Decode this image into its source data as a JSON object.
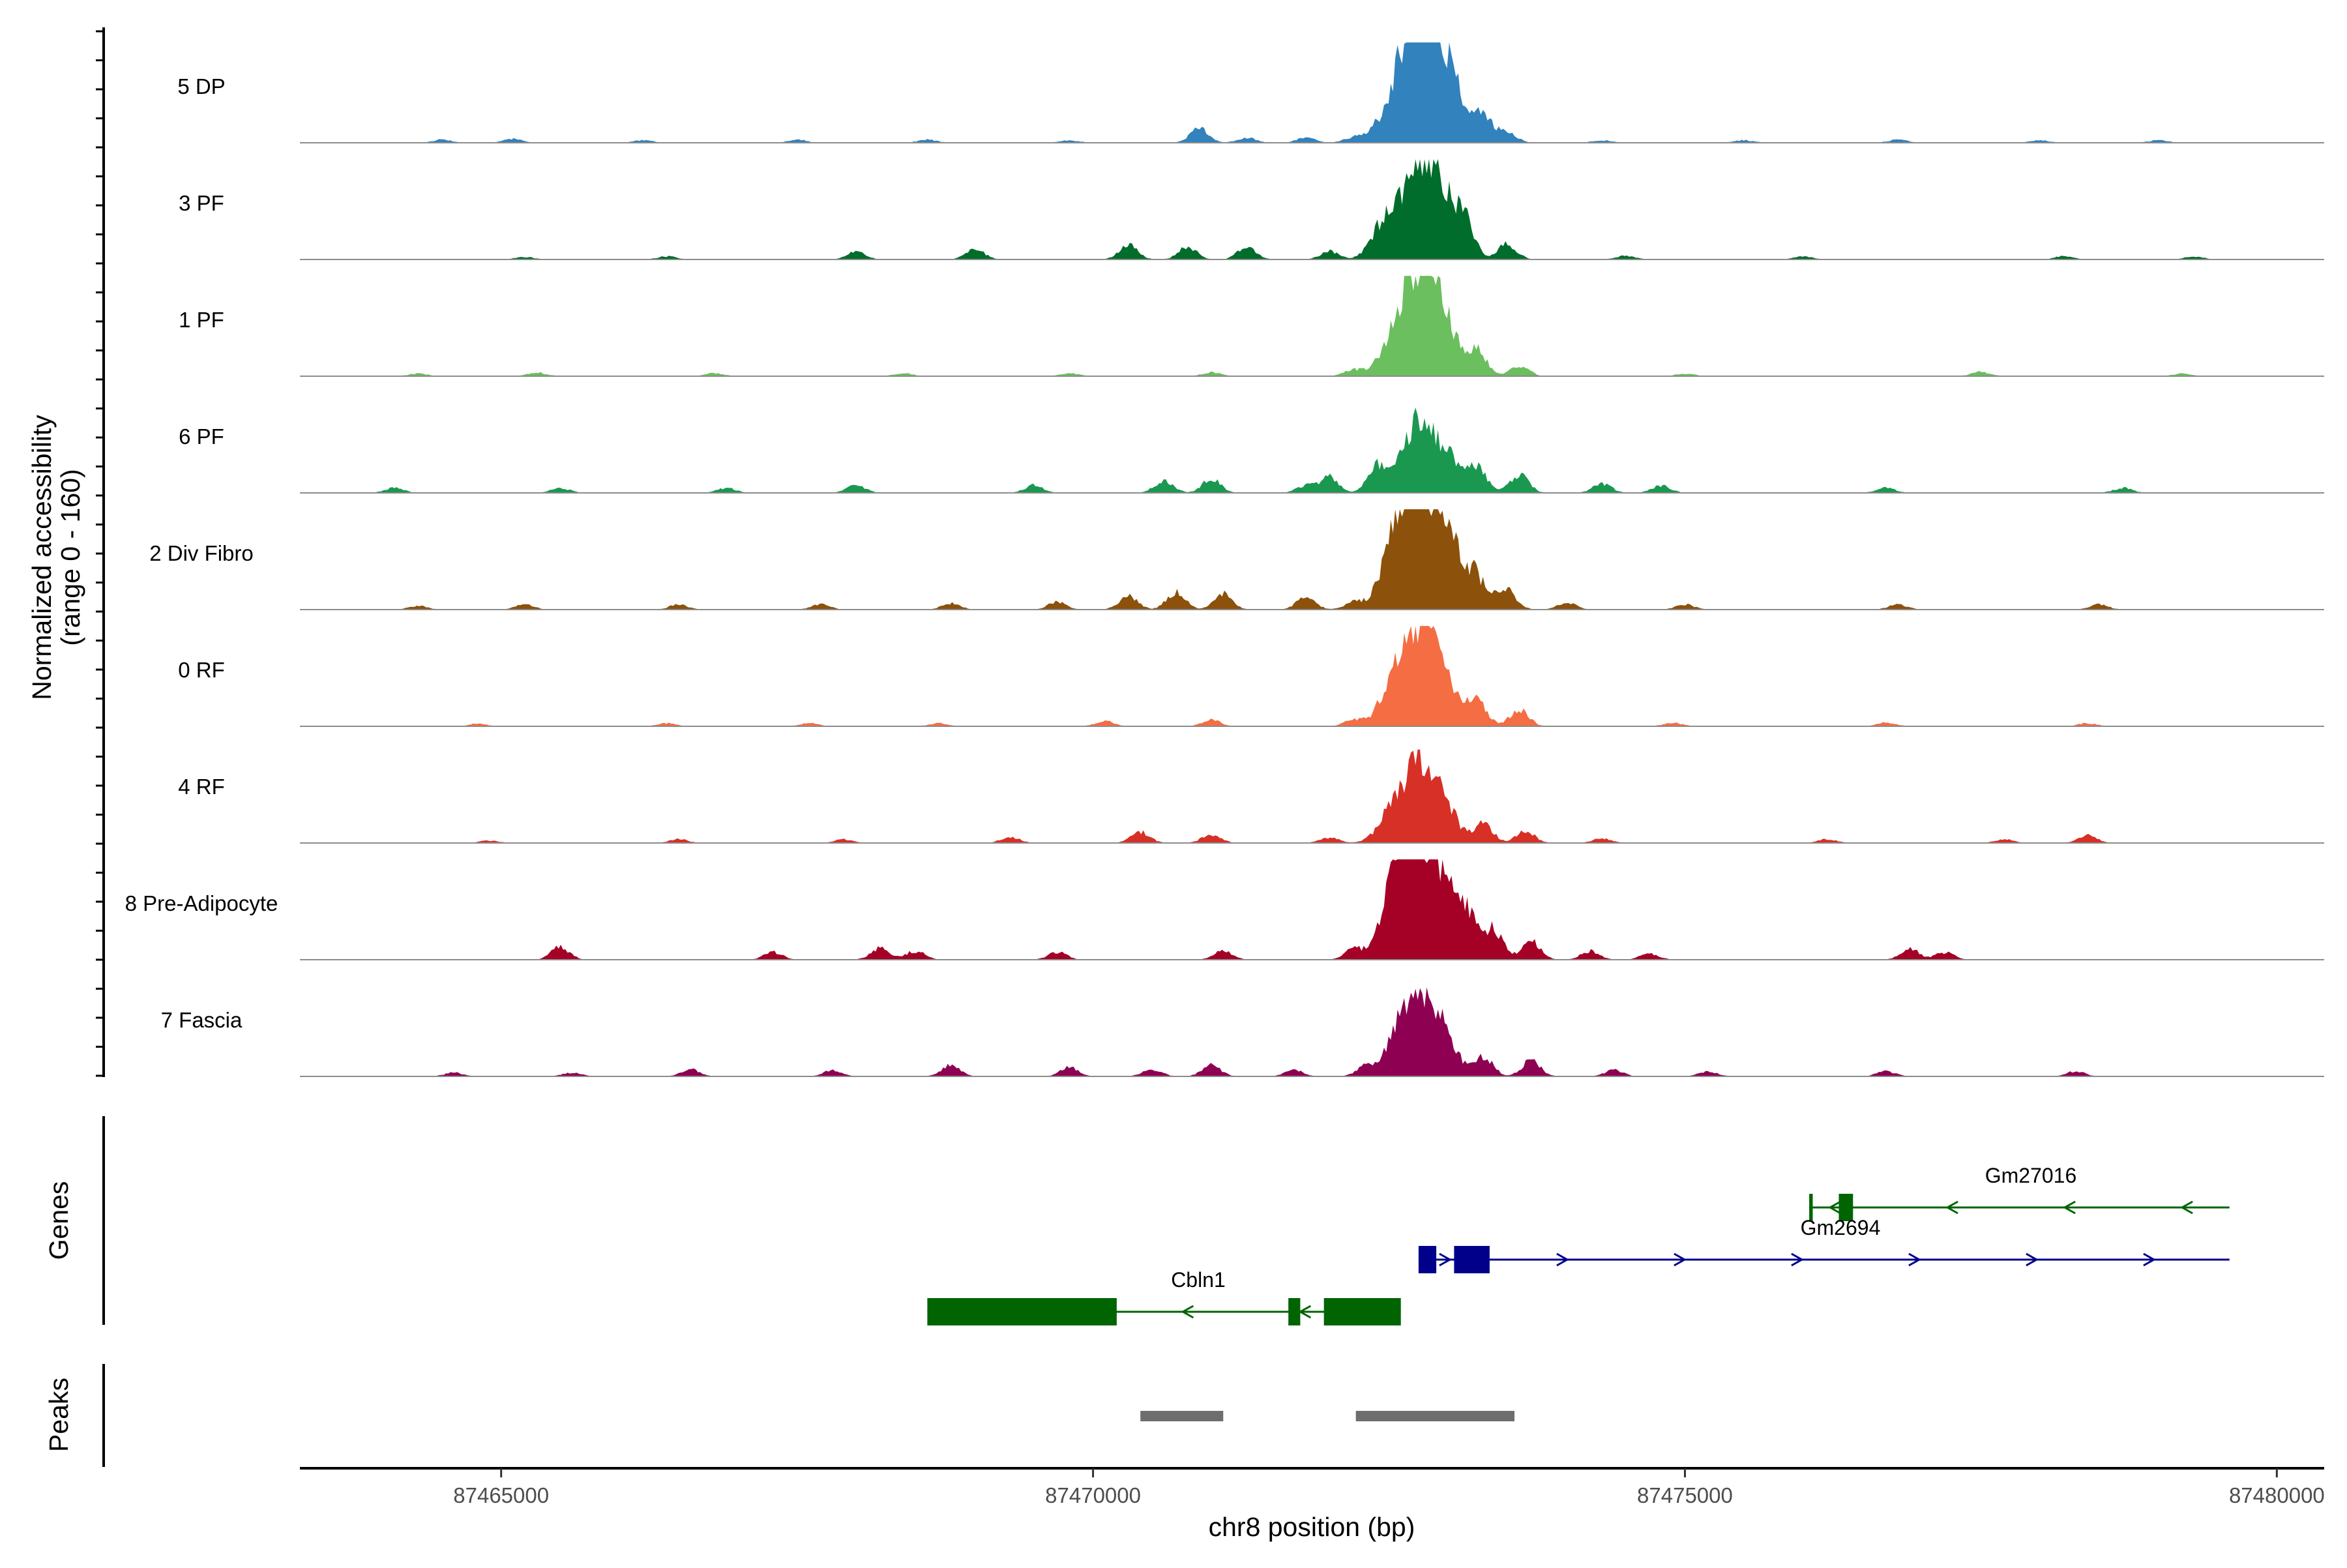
{
  "chart_data": {
    "type": "area",
    "title": "",
    "xlabel": "chr8 position (bp)",
    "ylabel": "Normalized accessibility",
    "ylabel_sub": "(range 0 - 160)",
    "ylim": [
      0,
      160
    ],
    "xlim": [
      87463300,
      87480400
    ],
    "x_ticks": [
      {
        "value": 87465000,
        "label": "87465000"
      },
      {
        "value": 87470000,
        "label": "87470000"
      },
      {
        "value": 87475000,
        "label": "87475000"
      },
      {
        "value": 87480000,
        "label": "87480000"
      }
    ],
    "tracks": [
      {
        "name": "5 DP",
        "color": "#3182BD",
        "main_peak": 150,
        "peaks": [
          [
            87464500,
            5
          ],
          [
            87465100,
            6
          ],
          [
            87466200,
            4
          ],
          [
            87467500,
            5
          ],
          [
            87468600,
            5
          ],
          [
            87469800,
            4
          ],
          [
            87470900,
            24
          ],
          [
            87471300,
            8
          ],
          [
            87471800,
            8
          ],
          [
            87472200,
            9
          ],
          [
            87472400,
            14
          ],
          [
            87472600,
            80
          ],
          [
            87472750,
            150
          ],
          [
            87472900,
            108
          ],
          [
            87473050,
            55
          ],
          [
            87473300,
            38
          ],
          [
            87473500,
            18
          ],
          [
            87474300,
            4
          ],
          [
            87475500,
            4
          ],
          [
            87476800,
            5
          ],
          [
            87478000,
            4
          ],
          [
            87479000,
            4
          ]
        ]
      },
      {
        "name": "3 PF",
        "color": "#006D2C",
        "main_peak": 120,
        "peaks": [
          [
            87465200,
            4
          ],
          [
            87466400,
            5
          ],
          [
            87468000,
            12
          ],
          [
            87469000,
            18
          ],
          [
            87470300,
            22
          ],
          [
            87470800,
            20
          ],
          [
            87471300,
            20
          ],
          [
            87472000,
            13
          ],
          [
            87472500,
            70
          ],
          [
            87472750,
            120
          ],
          [
            87472950,
            95
          ],
          [
            87473150,
            45
          ],
          [
            87473500,
            25
          ],
          [
            87474500,
            6
          ],
          [
            87476000,
            5
          ],
          [
            87478200,
            5
          ],
          [
            87479300,
            5
          ]
        ]
      },
      {
        "name": "1 PF",
        "color": "#6BBF5E",
        "main_peak": 145,
        "peaks": [
          [
            87464300,
            4
          ],
          [
            87465300,
            6
          ],
          [
            87466800,
            5
          ],
          [
            87468400,
            5
          ],
          [
            87469800,
            5
          ],
          [
            87471000,
            6
          ],
          [
            87472200,
            10
          ],
          [
            87472550,
            58
          ],
          [
            87472750,
            145
          ],
          [
            87472950,
            92
          ],
          [
            87473250,
            40
          ],
          [
            87473600,
            18
          ],
          [
            87475000,
            4
          ],
          [
            87477500,
            7
          ],
          [
            87479200,
            4
          ]
        ]
      },
      {
        "name": "6 PF",
        "color": "#1A9850",
        "main_peak": 100,
        "peaks": [
          [
            87464100,
            8
          ],
          [
            87465500,
            8
          ],
          [
            87466900,
            8
          ],
          [
            87468000,
            12
          ],
          [
            87469500,
            12
          ],
          [
            87470600,
            20
          ],
          [
            87471000,
            22
          ],
          [
            87471800,
            12
          ],
          [
            87472000,
            25
          ],
          [
            87472400,
            40
          ],
          [
            87472700,
            100
          ],
          [
            87472950,
            70
          ],
          [
            87473250,
            40
          ],
          [
            87473600,
            30
          ],
          [
            87474300,
            15
          ],
          [
            87474800,
            12
          ],
          [
            87476700,
            8
          ],
          [
            87478700,
            8
          ]
        ]
      },
      {
        "name": "2 Div Fibro",
        "color": "#8C510A",
        "main_peak": 160,
        "peaks": [
          [
            87464300,
            6
          ],
          [
            87465200,
            8
          ],
          [
            87466500,
            8
          ],
          [
            87467700,
            8
          ],
          [
            87468800,
            10
          ],
          [
            87469700,
            12
          ],
          [
            87470300,
            22
          ],
          [
            87470700,
            28
          ],
          [
            87471100,
            26
          ],
          [
            87471800,
            20
          ],
          [
            87472200,
            12
          ],
          [
            87472550,
            95
          ],
          [
            87472750,
            160
          ],
          [
            87472950,
            112
          ],
          [
            87473200,
            55
          ],
          [
            87473500,
            30
          ],
          [
            87474000,
            12
          ],
          [
            87475000,
            8
          ],
          [
            87476800,
            8
          ],
          [
            87478500,
            8
          ]
        ]
      },
      {
        "name": "0 RF",
        "color": "#F46D43",
        "main_peak": 125,
        "peaks": [
          [
            87464800,
            4
          ],
          [
            87466400,
            5
          ],
          [
            87467600,
            5
          ],
          [
            87468700,
            5
          ],
          [
            87470100,
            8
          ],
          [
            87471000,
            10
          ],
          [
            87472200,
            10
          ],
          [
            87472550,
            70
          ],
          [
            87472750,
            125
          ],
          [
            87472950,
            80
          ],
          [
            87473250,
            40
          ],
          [
            87473600,
            28
          ],
          [
            87474900,
            6
          ],
          [
            87476700,
            6
          ],
          [
            87478400,
            5
          ]
        ]
      },
      {
        "name": "4 RF",
        "color": "#D73027",
        "main_peak": 100,
        "peaks": [
          [
            87464900,
            4
          ],
          [
            87466500,
            6
          ],
          [
            87467900,
            6
          ],
          [
            87469300,
            10
          ],
          [
            87470400,
            18
          ],
          [
            87471000,
            14
          ],
          [
            87472000,
            9
          ],
          [
            87472550,
            55
          ],
          [
            87472750,
            100
          ],
          [
            87472950,
            60
          ],
          [
            87473300,
            30
          ],
          [
            87473650,
            20
          ],
          [
            87474300,
            8
          ],
          [
            87476200,
            6
          ],
          [
            87477700,
            6
          ],
          [
            87478400,
            12
          ]
        ]
      },
      {
        "name": "8 Pre-Adipocyte",
        "color": "#A50026",
        "main_peak": 160,
        "peaks": [
          [
            87465500,
            20
          ],
          [
            87467300,
            12
          ],
          [
            87468200,
            18
          ],
          [
            87468500,
            14
          ],
          [
            87469700,
            12
          ],
          [
            87471100,
            14
          ],
          [
            87472200,
            18
          ],
          [
            87472550,
            90
          ],
          [
            87472700,
            160
          ],
          [
            87472900,
            120
          ],
          [
            87473150,
            70
          ],
          [
            87473400,
            40
          ],
          [
            87473700,
            30
          ],
          [
            87474200,
            14
          ],
          [
            87474700,
            10
          ],
          [
            87476900,
            18
          ],
          [
            87477200,
            12
          ]
        ]
      },
      {
        "name": "7 Fascia",
        "color": "#8E0152",
        "main_peak": 100,
        "peaks": [
          [
            87464600,
            6
          ],
          [
            87465600,
            6
          ],
          [
            87466600,
            12
          ],
          [
            87467800,
            10
          ],
          [
            87468800,
            18
          ],
          [
            87469800,
            14
          ],
          [
            87470500,
            12
          ],
          [
            87471000,
            18
          ],
          [
            87471700,
            10
          ],
          [
            87472300,
            15
          ],
          [
            87472600,
            60
          ],
          [
            87472750,
            100
          ],
          [
            87472950,
            65
          ],
          [
            87473300,
            32
          ],
          [
            87473700,
            25
          ],
          [
            87474400,
            10
          ],
          [
            87475200,
            8
          ],
          [
            87476700,
            8
          ],
          [
            87478300,
            8
          ]
        ]
      }
    ],
    "gene_panel_title": "Genes",
    "genes": [
      {
        "name": "Gm27016",
        "strand": "-",
        "row": 0,
        "start": 87476050,
        "end": 87479600,
        "color": "#006400",
        "exons": [
          [
            87476050,
            87476080
          ],
          [
            87476300,
            87476420
          ]
        ]
      },
      {
        "name": "Gm2694",
        "strand": "+",
        "row": 1,
        "start": 87472750,
        "end": 87479600,
        "color": "#00008B",
        "exons": [
          [
            87472750,
            87472900
          ],
          [
            87473050,
            87473350
          ]
        ]
      },
      {
        "name": "Cbln1",
        "strand": "-",
        "row": 2,
        "start": 87468600,
        "end": 87472600,
        "color": "#006400",
        "exons": [
          [
            87468600,
            87470200
          ],
          [
            87471650,
            87471750
          ],
          [
            87471950,
            87472600
          ]
        ]
      }
    ],
    "peak_panel_title": "Peaks",
    "peak_regions": [
      [
        87470400,
        87471100
      ],
      [
        87472220,
        87473560
      ]
    ]
  }
}
